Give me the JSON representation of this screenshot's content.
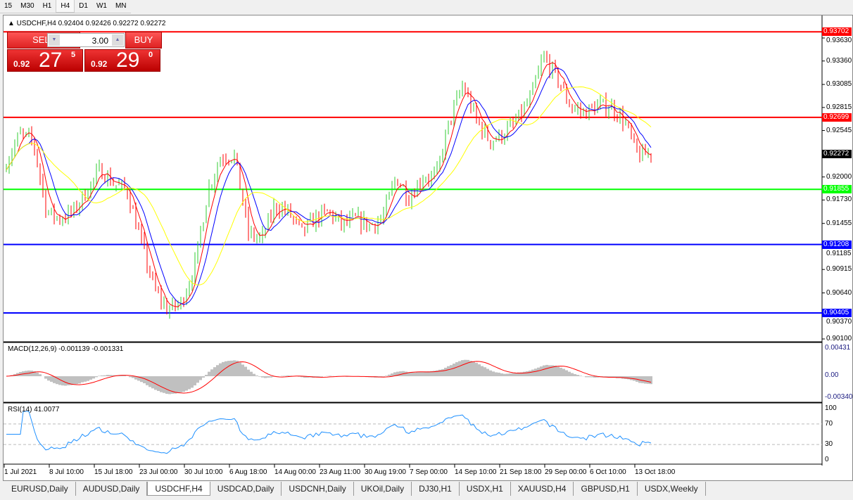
{
  "timeframes": [
    "15",
    "M30",
    "H1",
    "H4",
    "D1",
    "W1",
    "MN"
  ],
  "active_timeframe": "H4",
  "chart": {
    "header": "USDCHF,H4  0.92404 0.92426 0.92272 0.92272",
    "symbol": "USDCHF",
    "timeframe": "H4",
    "open": 0.92404,
    "high": 0.92426,
    "low": 0.92272,
    "close": 0.92272
  },
  "trade": {
    "sell_label": "SELL",
    "buy_label": "BUY",
    "lot": "3.00",
    "sell_small": "0.92",
    "sell_big": "27",
    "sell_exp": "5",
    "buy_small": "0.92",
    "buy_big": "29",
    "buy_exp": "0"
  },
  "price_axis": [
    "0.93630",
    "0.93360",
    "0.93085",
    "0.92815",
    "0.92545",
    "0.92000",
    "0.91730",
    "0.91455",
    "0.91185",
    "0.90915",
    "0.90640",
    "0.90370",
    "0.90100"
  ],
  "price_lines": [
    {
      "price": "0.93702",
      "color": "#ff0000"
    },
    {
      "price": "0.92699",
      "color": "#ff0000"
    },
    {
      "price": "0.91855",
      "color": "#00ff00"
    },
    {
      "price": "0.91208",
      "color": "#0000ff"
    },
    {
      "price": "0.90405",
      "color": "#0000ff"
    }
  ],
  "current_price": "0.92272",
  "macd": {
    "label": "MACD(12,26,9) -0.001139 -0.001331",
    "axis": [
      "0.00431",
      "0.00",
      "-0.003405"
    ]
  },
  "rsi": {
    "label": "RSI(14) 41.0077",
    "axis": [
      "100",
      "70",
      "30",
      "0"
    ]
  },
  "dates": [
    "1 Jul 2021",
    "8 Jul 10:00",
    "15 Jul 18:00",
    "23 Jul 00:00",
    "30 Jul 10:00",
    "6 Aug 18:00",
    "14 Aug 00:00",
    "23 Aug 11:00",
    "30 Aug 19:00",
    "7 Sep 00:00",
    "14 Sep 10:00",
    "21 Sep 18:00",
    "29 Sep 00:00",
    "6 Oct 10:00",
    "13 Oct 18:00"
  ],
  "tabs": [
    "EURUSD,Daily",
    "AUDUSD,Daily",
    "USDCHF,H4",
    "USDCAD,Daily",
    "USDCNH,Daily",
    "UKOil,Daily",
    "DJ30,H1",
    "USDX,H1",
    "XAUUSD,H4",
    "GBPUSD,H1",
    "USDX,Weekly"
  ],
  "active_tab": "USDCHF,H4",
  "chart_data": {
    "type": "candlestick",
    "close_path": [
      0.9217,
      0.925,
      0.9242,
      0.9159,
      0.9151,
      0.9159,
      0.9184,
      0.9209,
      0.9192,
      0.9184,
      0.9126,
      0.9069,
      0.9044,
      0.9052,
      0.9093,
      0.9184,
      0.9225,
      0.9225,
      0.9134,
      0.9126,
      0.9167,
      0.9159,
      0.9134,
      0.9151,
      0.9159,
      0.9143,
      0.9151,
      0.9143,
      0.9151,
      0.92,
      0.9176,
      0.92,
      0.92,
      0.9266,
      0.9308,
      0.9266,
      0.9242,
      0.925,
      0.9266,
      0.9291,
      0.9341,
      0.9316,
      0.9283,
      0.9275,
      0.9283,
      0.9283,
      0.9266,
      0.9225,
      0.9227
    ],
    "colors": {
      "up": "#32cd32",
      "down": "#ff0000",
      "ma_fast": "#ff0000",
      "ma_mid": "#0000ff",
      "ma_slow": "#ffff00",
      "macd_hist": "#c0c0c0",
      "macd_signal": "#ff0000",
      "rsi": "#1e90ff"
    }
  }
}
